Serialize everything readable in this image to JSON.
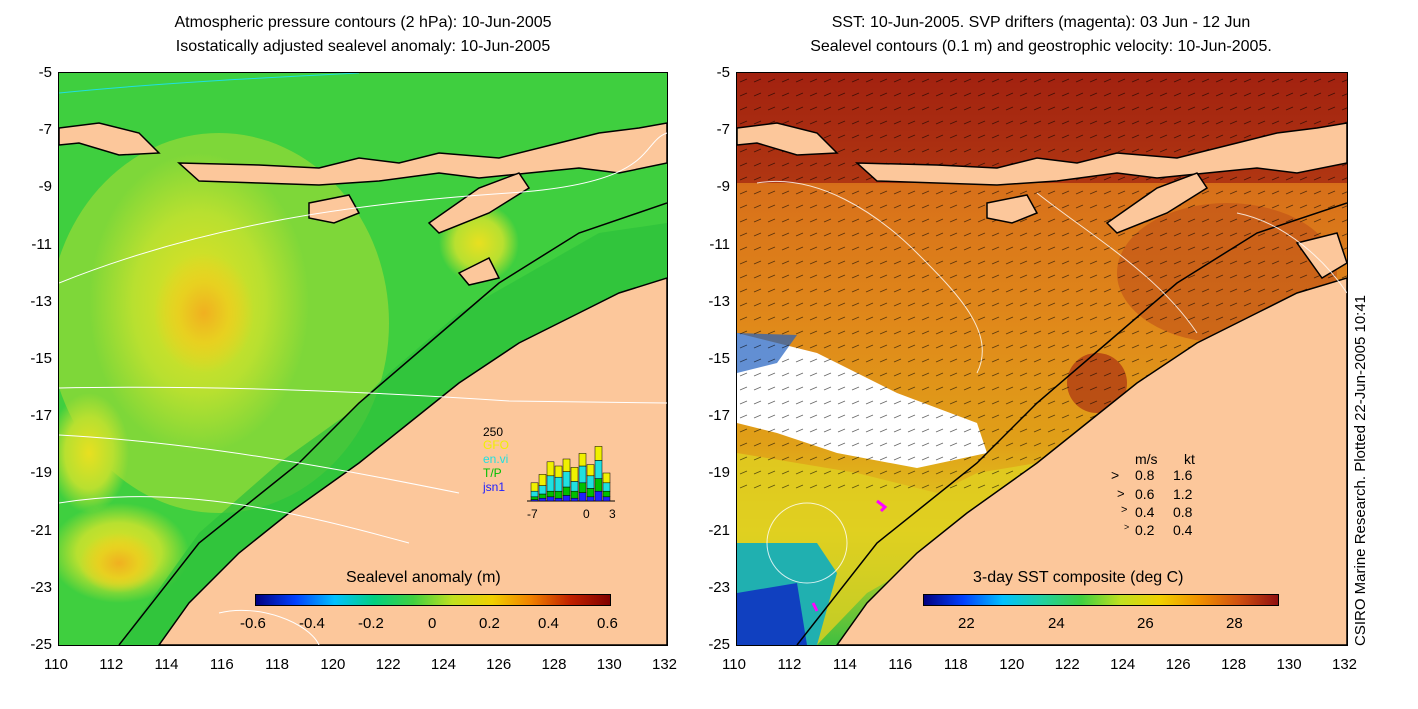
{
  "left_panel": {
    "title_line1": "Atmospheric pressure contours (2 hPa): 10-Jun-2005",
    "title_line2": "Isostatically adjusted sealevel anomaly: 10-Jun-2005",
    "colorbar": {
      "label": "Sealevel anomaly (m)",
      "ticks": [
        "-0.6",
        "-0.4",
        "-0.2",
        "0",
        "0.2",
        "0.4",
        "0.6"
      ]
    },
    "inset": {
      "y_label": "250",
      "legend": [
        {
          "label": "GFO",
          "color": "#f0f000"
        },
        {
          "label": "en.vi",
          "color": "#20e0e0"
        },
        {
          "label": "T/P",
          "color": "#00c000"
        },
        {
          "label": "jsn1",
          "color": "#2020ff"
        }
      ],
      "x_ticks": [
        "-7",
        "0",
        "3"
      ],
      "bar_stacks": [
        [
          0.3,
          0.2,
          0.1,
          0.05
        ],
        [
          0.4,
          0.3,
          0.15,
          0.1
        ],
        [
          0.5,
          0.55,
          0.2,
          0.15
        ],
        [
          0.4,
          0.5,
          0.25,
          0.1
        ],
        [
          0.45,
          0.55,
          0.3,
          0.2
        ],
        [
          0.5,
          0.35,
          0.25,
          0.1
        ],
        [
          0.45,
          0.6,
          0.35,
          0.3
        ],
        [
          0.4,
          0.45,
          0.3,
          0.15
        ],
        [
          0.5,
          0.65,
          0.45,
          0.35
        ],
        [
          0.35,
          0.3,
          0.2,
          0.15
        ]
      ]
    }
  },
  "right_panel": {
    "title_line1": "SST: 10-Jun-2005. SVP drifters (magenta): 03 Jun - 12 Jun",
    "title_line2": "Sealevel contours (0.1 m) and geostrophic velocity: 10-Jun-2005.",
    "colorbar": {
      "label": "3-day SST composite (deg C)",
      "ticks": [
        "22",
        "24",
        "26",
        "28"
      ]
    },
    "velocity_key": {
      "header_ms": "m/s",
      "header_kt": "kt",
      "rows": [
        {
          "ms": "0.8",
          "kt": "1.6"
        },
        {
          "ms": "0.6",
          "kt": "1.2"
        },
        {
          "ms": "0.4",
          "kt": "0.8"
        },
        {
          "ms": "0.2",
          "kt": "0.4"
        }
      ]
    }
  },
  "axes": {
    "y_ticks": [
      "-5",
      "-7",
      "-9",
      "-11",
      "-13",
      "-15",
      "-17",
      "-19",
      "-21",
      "-23",
      "-25"
    ],
    "x_ticks": [
      "110",
      "112",
      "114",
      "116",
      "118",
      "120",
      "122",
      "124",
      "126",
      "128",
      "130",
      "132"
    ]
  },
  "credit": "CSIRO Marine Research. Plotted 22-Jun-2005 10:41",
  "colors": {
    "land": "#fcc79b",
    "sla_green": "#3fcf3f",
    "sst_orange": "#e08a1a",
    "drifter": "#ff00ff"
  }
}
